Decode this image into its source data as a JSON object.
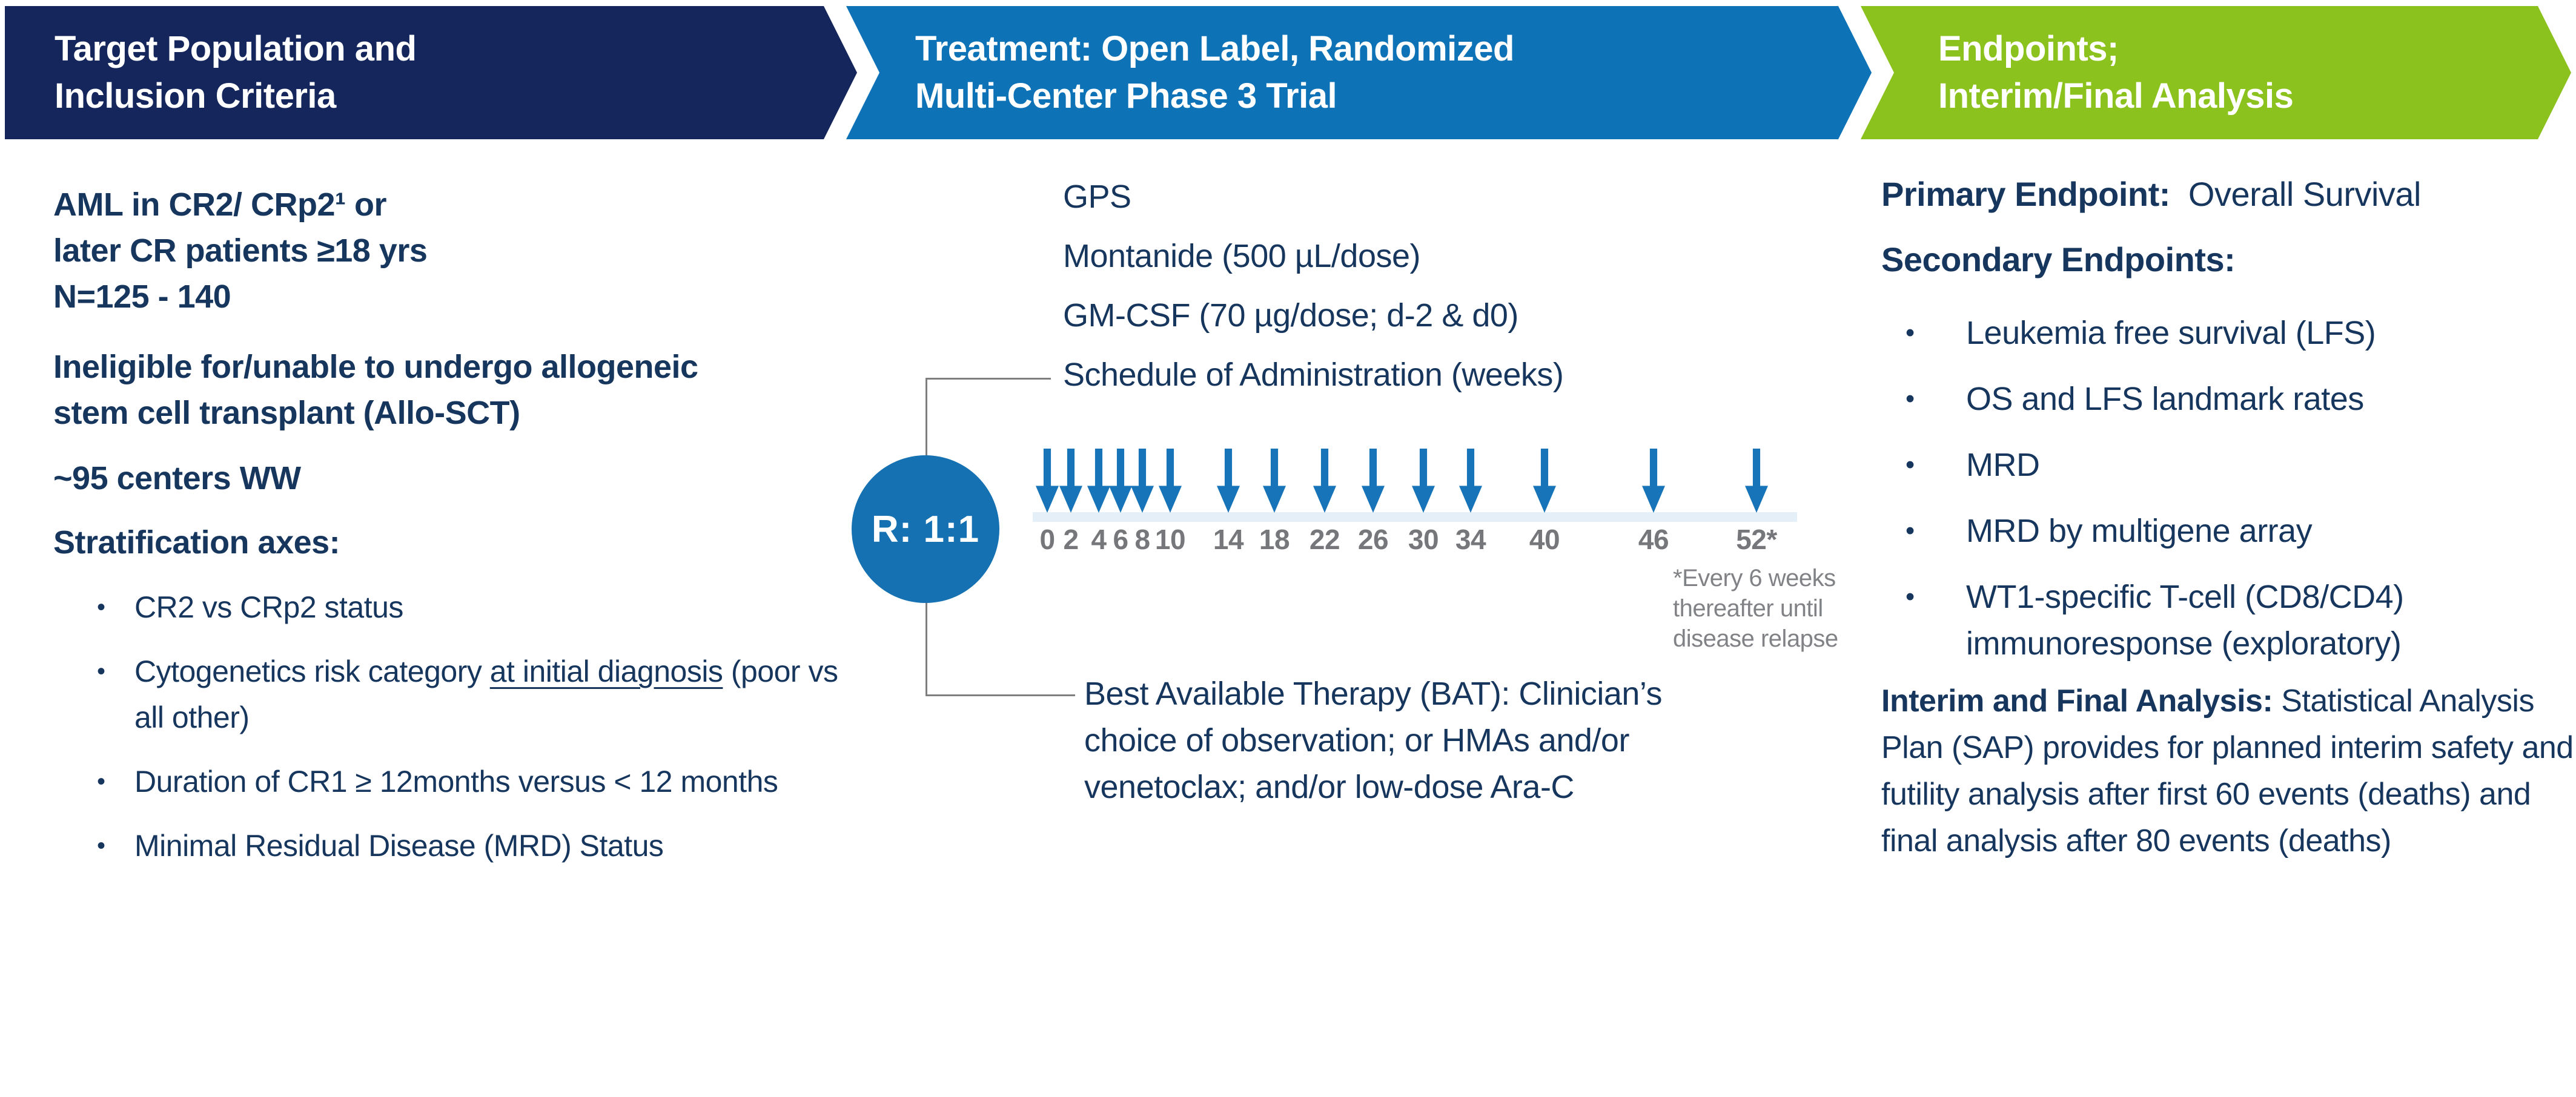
{
  "header": {
    "col1": {
      "line1": "Target Population and",
      "line2": "Inclusion Criteria"
    },
    "col2": {
      "line1": "Treatment: Open Label, Randomized",
      "line2": "Multi-Center Phase 3 Trial"
    },
    "col3": {
      "line1": "Endpoints;",
      "line2": "Interim/Final Analysis"
    }
  },
  "left": {
    "block1_lines": [
      "AML in CR2/ CRp2¹ or",
      "later CR patients ≥18 yrs",
      "N=125 - 140"
    ],
    "block2_lines": [
      "Ineligible for/unable to undergo allogeneic",
      "stem cell transplant (Allo-SCT)"
    ],
    "block3": "~95 centers WW",
    "block4": "Stratification axes:",
    "bullets": [
      {
        "pre": "CR2 vs CRp2 status",
        "underline": "",
        "post": ""
      },
      {
        "pre": "Cytogenetics risk category ",
        "underline": "at initial diagnosis",
        "post": " (poor vs all other)"
      },
      {
        "pre": "Duration of CR1 ≥ 12months versus < 12 months",
        "underline": "",
        "post": ""
      },
      {
        "pre": "Minimal Residual Disease (MRD) Status",
        "underline": "",
        "post": ""
      }
    ]
  },
  "middle": {
    "gps_label": "GPS",
    "montanide": "Montanide (500 µL/dose)",
    "gmcsf": "GM-CSF (70 µg/dose; d-2 & d0)",
    "schedule": "Schedule of Administration (weeks)",
    "randomization": "R: 1:1",
    "weeks": [
      "0",
      "2",
      "4",
      "6",
      "8",
      "10",
      "14",
      "18",
      "22",
      "26",
      "30",
      "34",
      "40",
      "46",
      "52*"
    ],
    "note_lines": [
      "*Every 6 weeks",
      "thereafter until",
      "disease relapse"
    ],
    "bat_lines": [
      "Best Available Therapy (BAT): Clinician’s",
      "choice of observation; or HMAs and/or",
      "venetoclax; and/or low-dose Ara-C"
    ]
  },
  "right": {
    "primary_label": "Primary Endpoint:",
    "primary_value": "Overall Survival",
    "secondary_label": "Secondary Endpoints:",
    "bullets": [
      "Leukemia free survival (LFS)",
      "OS and LFS landmark rates",
      "MRD",
      "MRD by multigene array",
      "WT1-specific T-cell (CD8/CD4) immunoresponse (exploratory)"
    ],
    "interim_label": "Interim and Final Analysis:",
    "interim_text": " Statistical Analysis Plan (SAP) provides for planned interim safety and futility analysis after first 60 events (deaths) and final analysis after 80 events (deaths)"
  },
  "colors": {
    "navy_band": "#14265C",
    "blue_band": "#0E72B7",
    "green_band": "#8CC21D",
    "text_navy": "#16365E",
    "arrow_blue": "#1874B8",
    "circle_blue": "#1571B2",
    "week_label_gray": "#76777A",
    "note_gray": "#808285",
    "bracket_gray": "#7F7F7F",
    "timeline_band_light_blue": "#E4EFF8"
  }
}
